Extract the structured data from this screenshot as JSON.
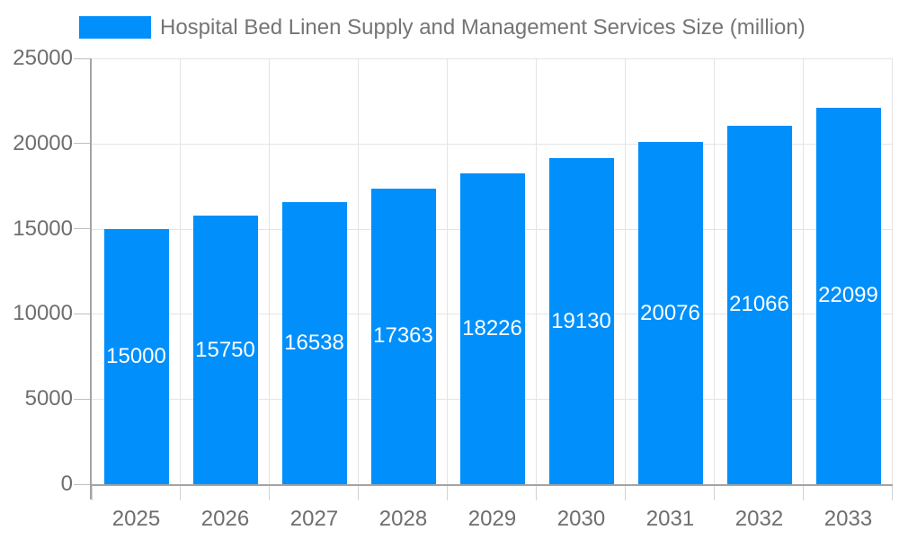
{
  "legend": {
    "swatch": "series-color-swatch"
  },
  "colors": {
    "bar": "#008FFB",
    "grid": "#e4e4e4",
    "axis": "#a3a3a3",
    "y_tick": "#bfbfbf",
    "x_tick": "#d2d2d2",
    "title_text": "#757575",
    "axis_text": "#6e6e6e",
    "bar_label_text": "#ffffff",
    "background": "#ffffff"
  },
  "chart_data": {
    "type": "bar",
    "title": "Hospital Bed Linen Supply and Management Services Size (million)",
    "categories": [
      "2025",
      "2026",
      "2027",
      "2028",
      "2029",
      "2030",
      "2031",
      "2032",
      "2033"
    ],
    "values": [
      15000,
      15750,
      16538,
      17363,
      18226,
      19130,
      20076,
      21066,
      22099
    ],
    "value_labels": [
      "15000",
      "15750",
      "16538",
      "17363",
      "18226",
      "19130",
      "20076",
      "21066",
      "22099"
    ],
    "xlabel": "",
    "ylabel": "",
    "ylim": [
      0,
      25000
    ],
    "yticks": [
      0,
      5000,
      10000,
      15000,
      20000,
      25000
    ],
    "ytick_labels": [
      "0",
      "5000",
      "10000",
      "15000",
      "20000",
      "25000"
    ],
    "grid": true,
    "legend_position": "top-left",
    "data_labels": "inside-center-white"
  }
}
